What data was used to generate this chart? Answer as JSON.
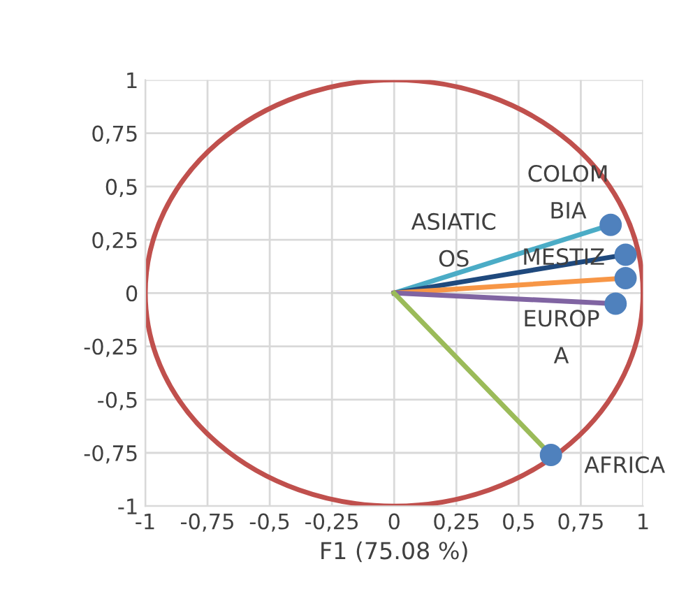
{
  "chart_data": {
    "type": "line",
    "xlabel": "F1 (75.08 %)",
    "xlim": [
      -1,
      1
    ],
    "ylim": [
      -1,
      1
    ],
    "xticks": [
      -1,
      {
        "value": -0.75,
        "label": "-0,75"
      },
      {
        "value": -0.5,
        "label": "-0,5"
      },
      {
        "value": -0.25,
        "label": "-0,25"
      },
      0,
      {
        "value": 0.25,
        "label": "0,25"
      },
      {
        "value": 0.5,
        "label": "0,5"
      },
      {
        "value": 0.75,
        "label": "0,75"
      },
      1
    ],
    "yticks": [
      -1,
      {
        "value": -0.75,
        "label": "-0,75"
      },
      {
        "value": -0.5,
        "label": "-0,5"
      },
      {
        "value": -0.25,
        "label": "-0,25"
      },
      0,
      {
        "value": 0.25,
        "label": "0,25"
      },
      {
        "value": 0.5,
        "label": "0,5"
      },
      {
        "value": 0.75,
        "label": "0,75"
      },
      1
    ],
    "grid": true,
    "legend": false,
    "line_style": "solid",
    "series": [
      {
        "color": "#4bacc6",
        "x": [
          0,
          0.87
        ],
        "values": [
          0,
          0.32
        ]
      },
      {
        "color": "#1f497d",
        "x": [
          0,
          0.93
        ],
        "values": [
          0,
          0.18
        ]
      },
      {
        "color": "#f79646",
        "x": [
          0,
          0.93
        ],
        "values": [
          0,
          0.07
        ]
      },
      {
        "color": "#8064a2",
        "x": [
          0,
          0.89
        ],
        "values": [
          0,
          -0.05
        ]
      },
      {
        "color": "#9bbb59",
        "x": [
          0,
          0.63
        ],
        "values": [
          0,
          -0.76
        ]
      },
      {
        "type": "scatter",
        "color": "#4f81bd",
        "x": [
          0.87,
          0.93,
          0.93,
          0.89,
          0.63
        ],
        "values": [
          0.32,
          0.18,
          0.07,
          -0.05,
          -0.76
        ]
      }
    ],
    "annotations": [
      {
        "text": "COLOM\nBIA",
        "x": 0.87,
        "y": 0.32
      },
      "ASIATIC\nOS",
      {
        "text": "MESTIZ",
        "x": 0.93,
        "y": 0.18
      },
      {
        "text": "EUROP\nA",
        "x": 0.89,
        "y": -0.05
      },
      {
        "text": "AFRICA",
        "x": 0.63,
        "y": -0.76
      }
    ]
  }
}
